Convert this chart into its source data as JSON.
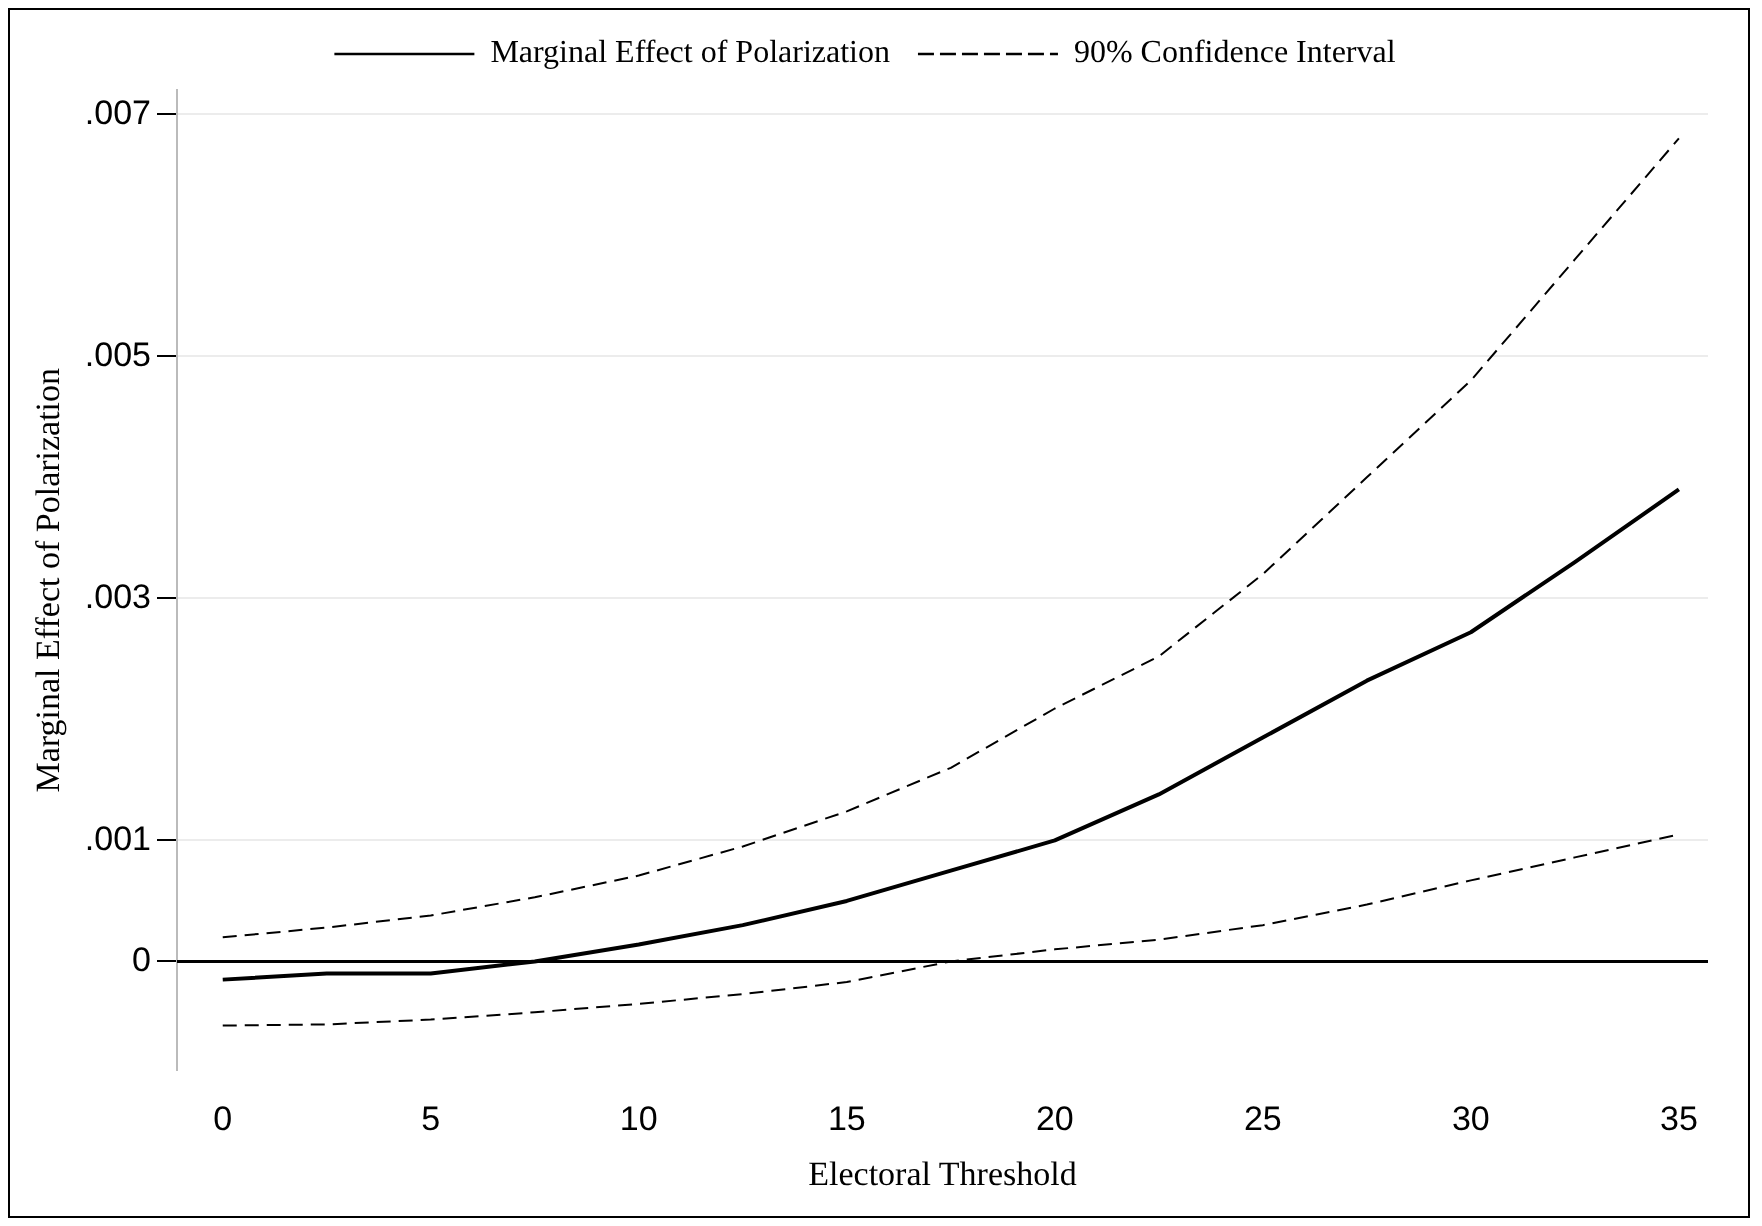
{
  "chart_data": {
    "type": "line",
    "xlabel": "Electoral Threshold",
    "ylabel": "Marginal Effect of Polarization",
    "x": [
      0,
      2.5,
      5,
      7.5,
      10,
      12.5,
      15,
      17.5,
      20,
      22.5,
      25,
      27.5,
      30,
      32.5,
      35
    ],
    "series": [
      {
        "name": "Marginal Effect of Polarization",
        "color": "#000000",
        "line_style": "solid",
        "values": [
          -0.00015,
          -0.0001,
          -0.0001,
          0,
          0.00014,
          0.0003,
          0.0005,
          0.00075,
          0.001,
          0.00138,
          0.00185,
          0.00232,
          0.00272,
          0.0033,
          0.0039
        ]
      },
      {
        "name": "90% Confidence Interval",
        "color": "#000000",
        "line_style": "dashed",
        "values": [
          0.0002,
          0.00028,
          0.00038,
          0.00053,
          0.00071,
          0.00095,
          0.00124,
          0.0016,
          0.00209,
          0.00252,
          0.0032,
          0.004,
          0.0048,
          0.0058,
          0.0068
        ]
      },
      {
        "color": "#000000",
        "line_style": "dashed",
        "values": [
          -0.00053,
          -0.00052,
          -0.00048,
          -0.00042,
          -0.00035,
          -0.00027,
          -0.00017,
          0,
          0.0001,
          0.00018,
          0.0003,
          0.00047,
          0.00067,
          0.00086,
          0.00105
        ]
      }
    ],
    "xlim": [
      -1.1,
      35.7
    ],
    "xticks": [
      0,
      5,
      10,
      15,
      20,
      25,
      30,
      35
    ],
    "ylim": [
      -0.0009,
      0.0072
    ],
    "yticks": [
      0,
      {
        "value": 0.001,
        "label": ".001"
      },
      {
        "value": 0.003,
        "label": ".003"
      },
      {
        "value": 0.005,
        "label": ".005"
      },
      {
        "value": 0.007,
        "label": ".007"
      }
    ],
    "ref_lines": [
      {
        "axis": "y",
        "value": 0,
        "color": "#000000"
      }
    ],
    "grid": "y",
    "legend": "top",
    "marker": "none"
  }
}
